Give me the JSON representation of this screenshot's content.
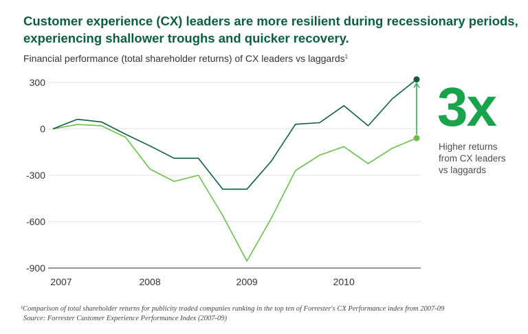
{
  "headline": "Customer experience (CX) leaders are more resilient during recessionary periods, experiencing shallower troughs and quicker recovery.",
  "subtitle": "Financial performance (total shareholder returns) of CX leaders vs laggards",
  "subtitle_footnote_mark": "1",
  "callout": {
    "big": "3x",
    "lines": [
      "Higher returns",
      "from CX leaders",
      "vs laggards"
    ]
  },
  "footnote": {
    "note": "¹Comparison of total shareholder returns for publicity traded companies ranking in the top ten of Forrester's CX Performance index from 2007-09",
    "source": "Source: Forrester Customer Experience Performance Index (2007-09)"
  },
  "colors": {
    "leaders": "#0b5e44",
    "laggards": "#6abf4b",
    "arrow": "#2aa84a",
    "grid": "#e3e3e3",
    "axis": "#333333"
  },
  "chart_data": {
    "type": "line",
    "ylim": [
      -900,
      300
    ],
    "yticks": [
      {
        "value": 300,
        "label": "300"
      },
      {
        "value": 0,
        "label": "0"
      },
      {
        "value": -300,
        "label": "-300"
      },
      {
        "value": -600,
        "label": "-600"
      },
      {
        "value": -900,
        "label": "-900"
      }
    ],
    "xlim": [
      2007,
      2010.75
    ],
    "xticks": [
      {
        "value": 2007,
        "label": "2007"
      },
      {
        "value": 2008,
        "label": "2008"
      },
      {
        "value": 2009,
        "label": "2009"
      },
      {
        "value": 2010,
        "label": "2010"
      }
    ],
    "grid": true,
    "legend": "none",
    "x": [
      2007,
      2007.25,
      2007.5,
      2007.75,
      2008,
      2008.25,
      2008.5,
      2008.75,
      2009,
      2009.25,
      2009.5,
      2009.75,
      2010,
      2010.25,
      2010.5,
      2010.75
    ],
    "series": [
      {
        "key": "leaders",
        "values": [
          0,
          62,
          45,
          -35,
          -110,
          -190,
          -190,
          -390,
          -390,
          -210,
          30,
          40,
          150,
          20,
          195,
          320
        ]
      },
      {
        "key": "laggards",
        "values": [
          0,
          28,
          20,
          -55,
          -260,
          -340,
          -300,
          -560,
          -855,
          -580,
          -270,
          -170,
          -115,
          -225,
          -125,
          -60
        ]
      }
    ]
  }
}
